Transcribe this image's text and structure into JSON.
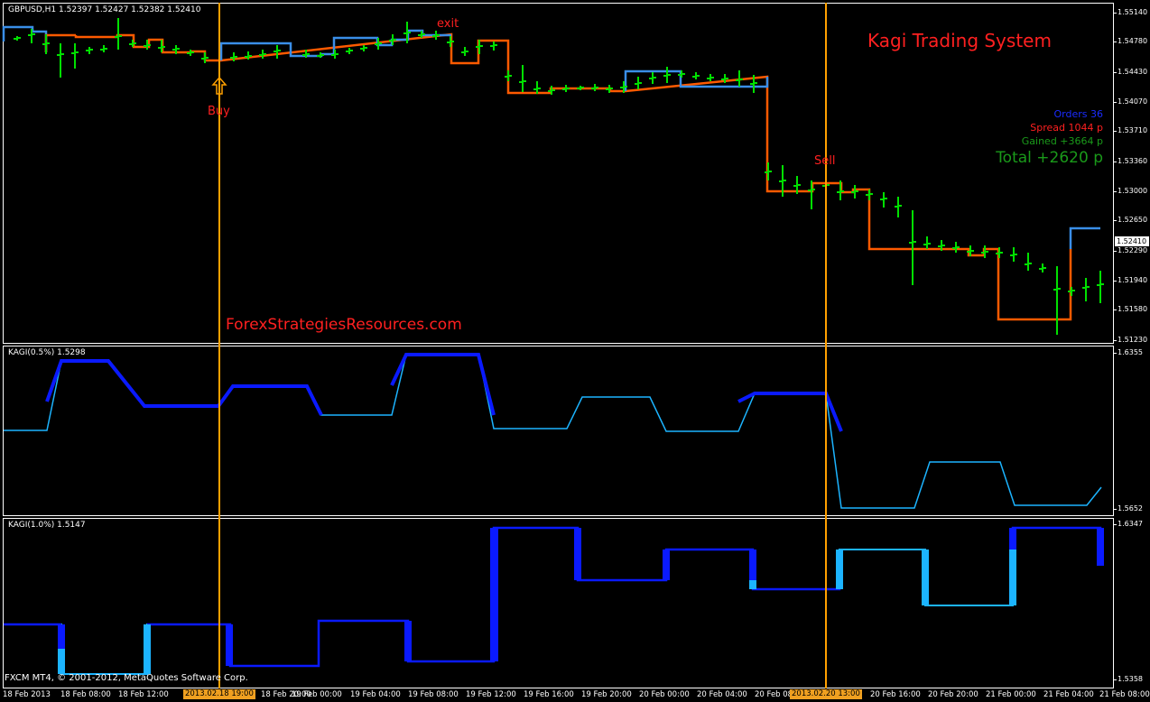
{
  "main": {
    "symbol_label": "GBPUSD,H1  1.52397 1.52427 1.52382 1.52410",
    "title": "Kagi Trading System",
    "site": "ForexStrategiesResources.com",
    "buy_label": "Buy",
    "sell_label": "Sell",
    "exit_label": "exit",
    "current_price": "1.52410",
    "yaxis": [
      "1.55140",
      "1.54780",
      "1.54430",
      "1.54070",
      "1.53710",
      "1.53360",
      "1.53000",
      "1.52650",
      "1.52290",
      "1.51940",
      "1.51580",
      "1.51230"
    ],
    "stats": {
      "orders": "Orders 36",
      "spread": "Spread 1044 p",
      "gained": "Gained +3664 p",
      "total": "Total +2620 p"
    }
  },
  "kagi1": {
    "label": "KAGI(0.5%) 1.5298",
    "ymax": "1.6355",
    "ymin": "1.5652"
  },
  "kagi2": {
    "label": "KAGI(1.0%) 1.5147",
    "ymax": "1.6347",
    "ymin": "1.5358"
  },
  "xaxis": [
    "18 Feb 2013",
    "18 Feb 08:00",
    "18 Feb 12:00",
    "18 Feb 20:00",
    "19 Feb 00:00",
    "19 Feb 04:00",
    "19 Feb 08:00",
    "19 Feb 12:00",
    "19 Feb 16:00",
    "19 Feb 20:00",
    "20 Feb 00:00",
    "20 Feb 04:00",
    "20 Feb 08:00",
    "20 Feb 16:00",
    "20 Feb 20:00",
    "21 Feb 00:00",
    "21 Feb 04:00",
    "21 Feb 08:00"
  ],
  "xaxis_highlight": [
    "2013.02.18 19:00",
    "2013.02.20 13:00"
  ],
  "footer": "FXCM MT4, © 2001-2012, MetaQuotes Software Corp.",
  "colors": {
    "up_line": "#3a8ee8",
    "down_line": "#ff5a00",
    "bars": "#00e000",
    "kagi_thick": "#0a1aff",
    "kagi_thin": "#1cb4ff",
    "markers": "#ffa000",
    "annotation": "#ff2020"
  }
}
